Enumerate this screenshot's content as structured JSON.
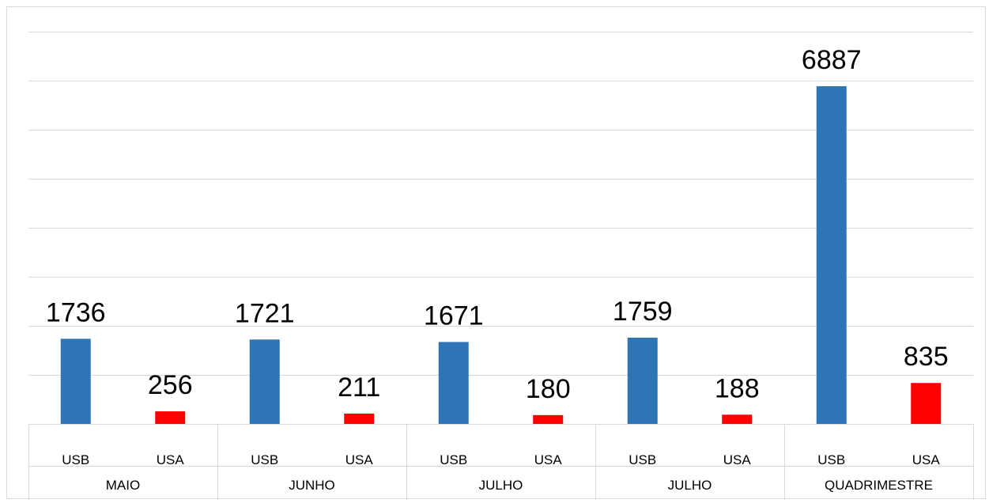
{
  "chart_data": {
    "type": "bar",
    "categories": [
      {
        "group": "MAIO",
        "label": "USB",
        "value": 1736,
        "color": "#2E75B6"
      },
      {
        "group": "MAIO",
        "label": "USA",
        "value": 256,
        "color": "#FF0000"
      },
      {
        "group": "JUNHO",
        "label": "USB",
        "value": 1721,
        "color": "#2E75B6"
      },
      {
        "group": "JUNHO",
        "label": "USA",
        "value": 211,
        "color": "#FF0000"
      },
      {
        "group": "JULHO",
        "label": "USB",
        "value": 1671,
        "color": "#2E75B6"
      },
      {
        "group": "JULHO",
        "label": "USA",
        "value": 180,
        "color": "#FF0000"
      },
      {
        "group": "JULHO",
        "label": "USB",
        "value": 1759,
        "color": "#2E75B6"
      },
      {
        "group": "JULHO",
        "label": "USA",
        "value": 188,
        "color": "#FF0000"
      },
      {
        "group": "QUADRIMESTRE",
        "label": "USB",
        "value": 6887,
        "color": "#2E75B6"
      },
      {
        "group": "QUADRIMESTRE",
        "label": "USA",
        "value": 835,
        "color": "#FF0000"
      }
    ],
    "groups": [
      "MAIO",
      "JUNHO",
      "JULHO",
      "JULHO",
      "QUADRIMESTRE"
    ],
    "ylim": [
      0,
      8000
    ],
    "grid": true,
    "title": "",
    "xlabel": "",
    "ylabel": ""
  }
}
